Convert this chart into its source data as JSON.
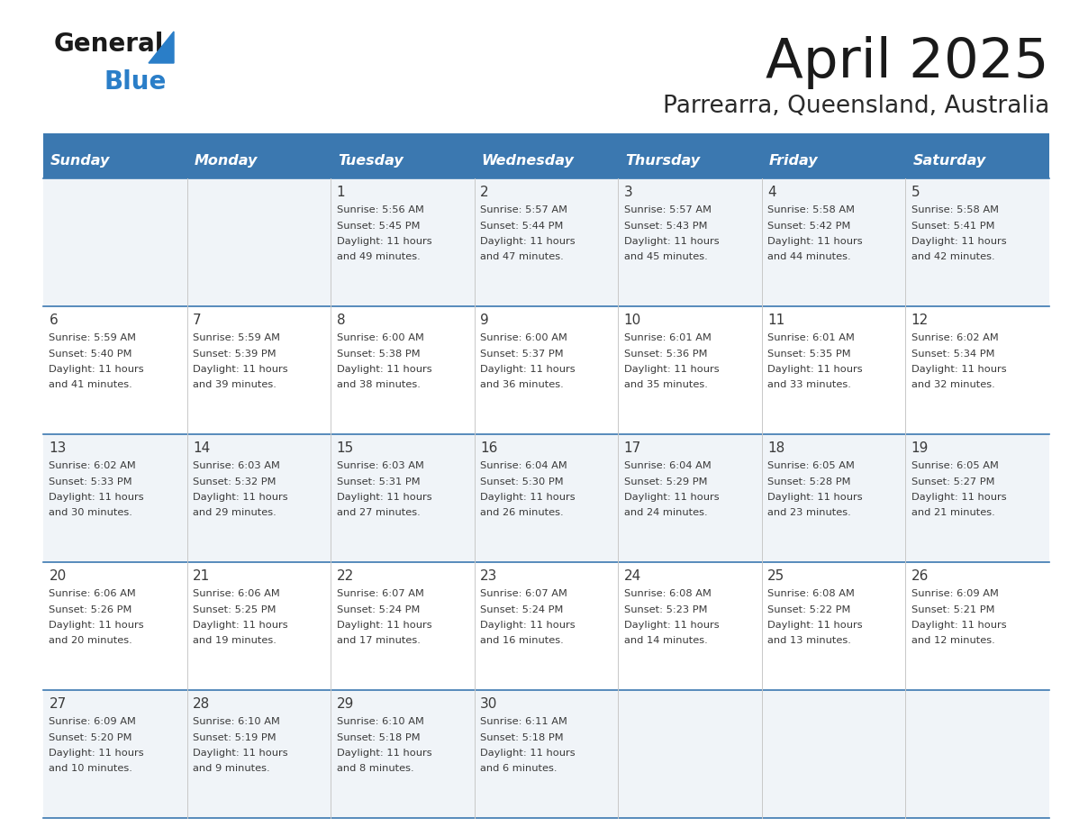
{
  "title": "April 2025",
  "subtitle": "Parrearra, Queensland, Australia",
  "header_color": "#3b78b0",
  "header_text_color": "#ffffff",
  "row_bg_0": "#f0f4f8",
  "row_bg_1": "#ffffff",
  "grid_line_color": "#3b78b0",
  "text_color": "#3a3a3a",
  "days_of_week": [
    "Sunday",
    "Monday",
    "Tuesday",
    "Wednesday",
    "Thursday",
    "Friday",
    "Saturday"
  ],
  "logo_color1": "#1a1a1a",
  "logo_color2": "#2a7ec8",
  "calendar": [
    [
      {
        "day": "",
        "sunrise": "",
        "sunset": "",
        "daylight": ""
      },
      {
        "day": "",
        "sunrise": "",
        "sunset": "",
        "daylight": ""
      },
      {
        "day": "1",
        "sunrise": "5:56 AM",
        "sunset": "5:45 PM",
        "daylight": "11 hours and 49 minutes."
      },
      {
        "day": "2",
        "sunrise": "5:57 AM",
        "sunset": "5:44 PM",
        "daylight": "11 hours and 47 minutes."
      },
      {
        "day": "3",
        "sunrise": "5:57 AM",
        "sunset": "5:43 PM",
        "daylight": "11 hours and 45 minutes."
      },
      {
        "day": "4",
        "sunrise": "5:58 AM",
        "sunset": "5:42 PM",
        "daylight": "11 hours and 44 minutes."
      },
      {
        "day": "5",
        "sunrise": "5:58 AM",
        "sunset": "5:41 PM",
        "daylight": "11 hours and 42 minutes."
      }
    ],
    [
      {
        "day": "6",
        "sunrise": "5:59 AM",
        "sunset": "5:40 PM",
        "daylight": "11 hours and 41 minutes."
      },
      {
        "day": "7",
        "sunrise": "5:59 AM",
        "sunset": "5:39 PM",
        "daylight": "11 hours and 39 minutes."
      },
      {
        "day": "8",
        "sunrise": "6:00 AM",
        "sunset": "5:38 PM",
        "daylight": "11 hours and 38 minutes."
      },
      {
        "day": "9",
        "sunrise": "6:00 AM",
        "sunset": "5:37 PM",
        "daylight": "11 hours and 36 minutes."
      },
      {
        "day": "10",
        "sunrise": "6:01 AM",
        "sunset": "5:36 PM",
        "daylight": "11 hours and 35 minutes."
      },
      {
        "day": "11",
        "sunrise": "6:01 AM",
        "sunset": "5:35 PM",
        "daylight": "11 hours and 33 minutes."
      },
      {
        "day": "12",
        "sunrise": "6:02 AM",
        "sunset": "5:34 PM",
        "daylight": "11 hours and 32 minutes."
      }
    ],
    [
      {
        "day": "13",
        "sunrise": "6:02 AM",
        "sunset": "5:33 PM",
        "daylight": "11 hours and 30 minutes."
      },
      {
        "day": "14",
        "sunrise": "6:03 AM",
        "sunset": "5:32 PM",
        "daylight": "11 hours and 29 minutes."
      },
      {
        "day": "15",
        "sunrise": "6:03 AM",
        "sunset": "5:31 PM",
        "daylight": "11 hours and 27 minutes."
      },
      {
        "day": "16",
        "sunrise": "6:04 AM",
        "sunset": "5:30 PM",
        "daylight": "11 hours and 26 minutes."
      },
      {
        "day": "17",
        "sunrise": "6:04 AM",
        "sunset": "5:29 PM",
        "daylight": "11 hours and 24 minutes."
      },
      {
        "day": "18",
        "sunrise": "6:05 AM",
        "sunset": "5:28 PM",
        "daylight": "11 hours and 23 minutes."
      },
      {
        "day": "19",
        "sunrise": "6:05 AM",
        "sunset": "5:27 PM",
        "daylight": "11 hours and 21 minutes."
      }
    ],
    [
      {
        "day": "20",
        "sunrise": "6:06 AM",
        "sunset": "5:26 PM",
        "daylight": "11 hours and 20 minutes."
      },
      {
        "day": "21",
        "sunrise": "6:06 AM",
        "sunset": "5:25 PM",
        "daylight": "11 hours and 19 minutes."
      },
      {
        "day": "22",
        "sunrise": "6:07 AM",
        "sunset": "5:24 PM",
        "daylight": "11 hours and 17 minutes."
      },
      {
        "day": "23",
        "sunrise": "6:07 AM",
        "sunset": "5:24 PM",
        "daylight": "11 hours and 16 minutes."
      },
      {
        "day": "24",
        "sunrise": "6:08 AM",
        "sunset": "5:23 PM",
        "daylight": "11 hours and 14 minutes."
      },
      {
        "day": "25",
        "sunrise": "6:08 AM",
        "sunset": "5:22 PM",
        "daylight": "11 hours and 13 minutes."
      },
      {
        "day": "26",
        "sunrise": "6:09 AM",
        "sunset": "5:21 PM",
        "daylight": "11 hours and 12 minutes."
      }
    ],
    [
      {
        "day": "27",
        "sunrise": "6:09 AM",
        "sunset": "5:20 PM",
        "daylight": "11 hours and 10 minutes."
      },
      {
        "day": "28",
        "sunrise": "6:10 AM",
        "sunset": "5:19 PM",
        "daylight": "11 hours and 9 minutes."
      },
      {
        "day": "29",
        "sunrise": "6:10 AM",
        "sunset": "5:18 PM",
        "daylight": "11 hours and 8 minutes."
      },
      {
        "day": "30",
        "sunrise": "6:11 AM",
        "sunset": "5:18 PM",
        "daylight": "11 hours and 6 minutes."
      },
      {
        "day": "",
        "sunrise": "",
        "sunset": "",
        "daylight": ""
      },
      {
        "day": "",
        "sunrise": "",
        "sunset": "",
        "daylight": ""
      },
      {
        "day": "",
        "sunrise": "",
        "sunset": "",
        "daylight": ""
      }
    ]
  ]
}
